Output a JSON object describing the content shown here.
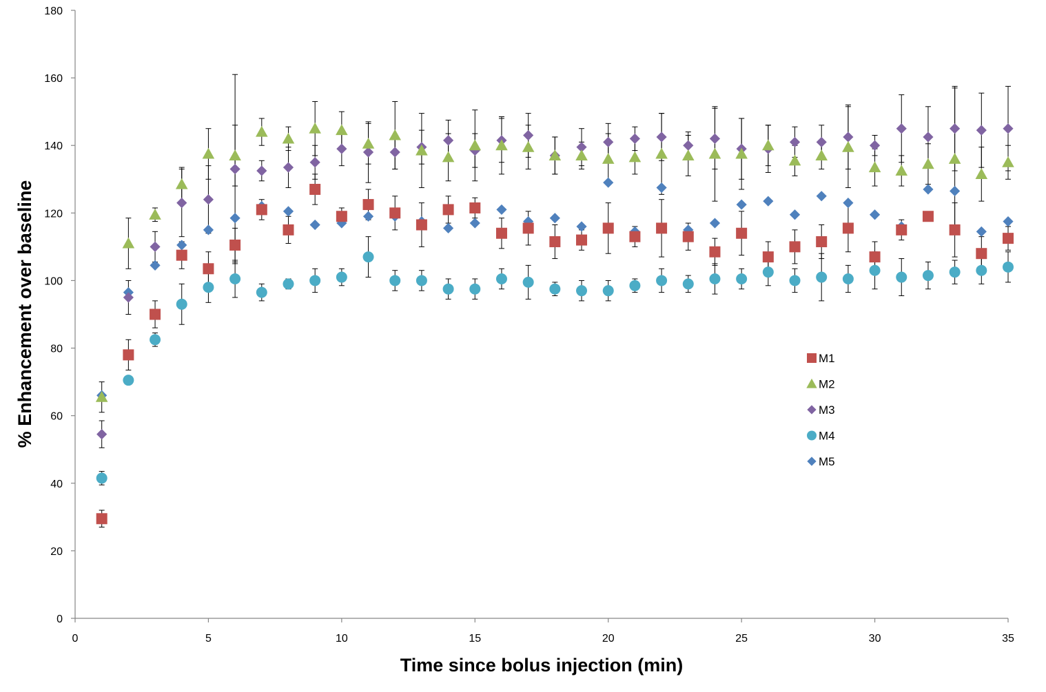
{
  "chart_data": {
    "type": "scatter",
    "title": "",
    "xlabel": "Time since bolus injection (min)",
    "ylabel": "% Enhancement over baseline",
    "xlim": [
      0,
      35
    ],
    "ylim": [
      0,
      180
    ],
    "xticks": [
      0,
      5,
      10,
      15,
      20,
      25,
      30,
      35
    ],
    "yticks": [
      0,
      20,
      40,
      60,
      80,
      100,
      120,
      140,
      160,
      180
    ],
    "legend_position": "right-middle",
    "grid": false,
    "x": [
      1,
      2,
      3,
      4,
      5,
      6,
      7,
      8,
      9,
      10,
      11,
      12,
      13,
      14,
      15,
      16,
      17,
      18,
      19,
      20,
      21,
      22,
      23,
      24,
      25,
      26,
      27,
      28,
      29,
      30,
      31,
      32,
      33,
      34,
      35
    ],
    "series": [
      {
        "name": "M1",
        "marker": "square",
        "color": "#C0504D",
        "values": [
          29.5,
          78,
          90,
          107.5,
          103.5,
          110.5,
          121,
          115,
          127,
          119,
          122.5,
          120,
          116.5,
          121,
          121.5,
          114,
          115.5,
          111.5,
          112,
          115.5,
          113,
          115.5,
          113,
          108.5,
          114,
          107,
          110,
          111.5,
          115.5,
          107,
          115,
          119,
          115,
          108,
          112.5
        ],
        "errors": [
          2.5,
          4.5,
          4,
          4,
          5,
          5,
          3,
          4,
          4.5,
          2.5,
          4.5,
          5,
          6.5,
          4,
          3,
          4.5,
          5,
          5,
          3,
          7.5,
          3,
          8.5,
          4,
          4,
          6.5,
          4.5,
          5,
          5,
          7,
          4.5,
          3,
          0,
          8,
          5,
          3.5
        ]
      },
      {
        "name": "M2",
        "marker": "triangle",
        "color": "#9BBB59",
        "values": [
          65.5,
          111,
          119.5,
          128.5,
          137.5,
          137,
          144,
          142,
          145,
          144.5,
          140.5,
          143,
          138.5,
          136.5,
          140,
          140,
          139.5,
          137,
          137,
          136,
          136.5,
          137.5,
          137,
          137.5,
          137.5,
          140,
          135.5,
          137,
          139.5,
          133.5,
          132.5,
          134.5,
          136,
          131.5,
          135
        ],
        "errors": [
          4.5,
          7.5,
          2,
          5,
          7.5,
          9,
          4,
          3.5,
          8,
          5.5,
          6,
          10,
          11,
          7,
          10.5,
          8.5,
          6.5,
          5.5,
          4,
          7.5,
          5,
          12,
          6,
          14,
          10.5,
          6,
          4.5,
          4,
          12,
          5.5,
          4.5,
          6,
          21,
          8,
          5
        ]
      },
      {
        "name": "M3",
        "marker": "diamond",
        "color": "#8064A2",
        "values": [
          54.5,
          95,
          110,
          123,
          124,
          133,
          132.5,
          133.5,
          135,
          139,
          138,
          138,
          139.5,
          141.5,
          138.5,
          141.5,
          143,
          137,
          139.5,
          141,
          142,
          142.5,
          140,
          142,
          139,
          139,
          141,
          141,
          142.5,
          140,
          145,
          142.5,
          145,
          144.5,
          145
        ],
        "errors": [
          4,
          5,
          4.5,
          10,
          10,
          28,
          3,
          6,
          5,
          5,
          9,
          5,
          5,
          6,
          5,
          6.5,
          6.5,
          5.5,
          5.5,
          5.5,
          3.5,
          7,
          4,
          9,
          9,
          7,
          4.5,
          5,
          9.5,
          3,
          10,
          9,
          12.5,
          11,
          12.5
        ]
      },
      {
        "name": "M4",
        "marker": "circle",
        "color": "#4BACC6",
        "values": [
          41.5,
          70.5,
          82.5,
          93,
          98,
          100.5,
          96.5,
          99,
          100,
          101,
          107,
          100,
          100,
          97.5,
          97.5,
          100.5,
          99.5,
          97.5,
          97,
          97,
          98.5,
          100,
          99,
          100.5,
          100.5,
          102.5,
          100,
          101,
          100.5,
          103,
          101,
          101.5,
          102.5,
          103,
          104
        ],
        "errors": [
          2,
          0,
          2,
          6,
          4.5,
          5.5,
          2.5,
          1.5,
          3.5,
          2.5,
          6,
          3,
          3,
          3,
          3,
          3,
          5,
          2,
          3,
          3,
          2,
          3.5,
          2.5,
          4.5,
          3,
          4,
          3.5,
          7,
          4,
          5.5,
          5.5,
          4,
          3.5,
          4,
          4.5
        ]
      },
      {
        "name": "M5",
        "marker": "diamond",
        "color": "#4F81BD",
        "values": [
          66,
          96.5,
          104.5,
          110.5,
          115,
          118.5,
          122,
          120.5,
          116.5,
          117,
          119,
          119,
          117.5,
          115.5,
          117,
          121,
          117.5,
          118.5,
          116,
          129,
          114.5,
          127.5,
          115,
          117,
          122.5,
          123.5,
          119.5,
          125,
          123,
          119.5,
          116,
          127,
          126.5,
          114.5,
          117.5
        ],
        "errors": [
          0,
          0,
          0,
          0,
          0,
          0,
          0,
          0,
          0,
          0,
          0,
          0,
          0,
          0,
          0,
          0,
          0,
          0,
          0,
          0,
          0,
          0,
          0,
          0,
          0,
          0,
          0,
          0,
          0,
          0,
          0,
          0,
          0,
          0,
          0
        ]
      }
    ]
  }
}
